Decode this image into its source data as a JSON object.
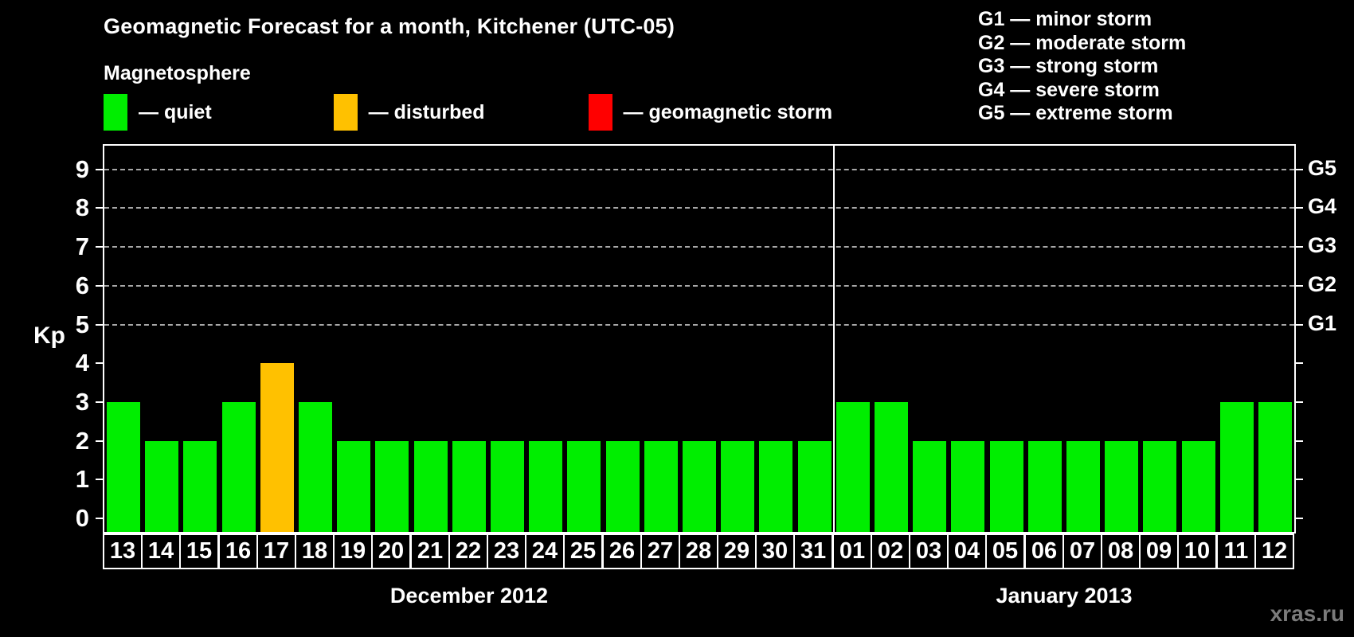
{
  "header": {
    "title": "Geomagnetic Forecast for a month, Kitchener (UTC-05)",
    "subtitle": "Magnetosphere"
  },
  "legend": {
    "items": [
      {
        "name": "quiet",
        "label": "— quiet",
        "color": "#00ee00"
      },
      {
        "name": "disturbed",
        "label": "— disturbed",
        "color": "#ffc100"
      },
      {
        "name": "storm",
        "label": "— geomagnetic storm",
        "color": "#ff0000"
      }
    ]
  },
  "g_scale_legend": {
    "items": [
      "G1 — minor storm",
      "G2 — moderate storm",
      "G3 — strong storm",
      "G4 — severe storm",
      "G5 — extreme storm"
    ]
  },
  "watermark": "xras.ru",
  "chart_data": {
    "type": "bar",
    "title": "Geomagnetic Forecast for a month, Kitchener (UTC-05)",
    "ylabel": "Kp",
    "ylim": [
      0,
      9
    ],
    "yticks": [
      0,
      1,
      2,
      3,
      4,
      5,
      6,
      7,
      8,
      9
    ],
    "gridlines_at": [
      5,
      6,
      7,
      8,
      9
    ],
    "grid": "dashed, only at storm levels 5-9",
    "right_axis_labels": [
      {
        "level": 5,
        "label": "G1"
      },
      {
        "level": 6,
        "label": "G2"
      },
      {
        "level": 7,
        "label": "G3"
      },
      {
        "level": 8,
        "label": "G4"
      },
      {
        "level": 9,
        "label": "G5"
      }
    ],
    "colors": {
      "quiet": "#00ee00",
      "disturbed": "#ffc100",
      "storm": "#ff0000"
    },
    "sections": [
      {
        "label": "December 2012",
        "days": 19
      },
      {
        "label": "January 2013",
        "days": 12
      }
    ],
    "bars": [
      {
        "day": "13",
        "kp": 3,
        "state": "quiet"
      },
      {
        "day": "14",
        "kp": 2,
        "state": "quiet"
      },
      {
        "day": "15",
        "kp": 2,
        "state": "quiet"
      },
      {
        "day": "16",
        "kp": 3,
        "state": "quiet"
      },
      {
        "day": "17",
        "kp": 4,
        "state": "disturbed"
      },
      {
        "day": "18",
        "kp": 3,
        "state": "quiet"
      },
      {
        "day": "19",
        "kp": 2,
        "state": "quiet"
      },
      {
        "day": "20",
        "kp": 2,
        "state": "quiet"
      },
      {
        "day": "21",
        "kp": 2,
        "state": "quiet"
      },
      {
        "day": "22",
        "kp": 2,
        "state": "quiet"
      },
      {
        "day": "23",
        "kp": 2,
        "state": "quiet"
      },
      {
        "day": "24",
        "kp": 2,
        "state": "quiet"
      },
      {
        "day": "25",
        "kp": 2,
        "state": "quiet"
      },
      {
        "day": "26",
        "kp": 2,
        "state": "quiet"
      },
      {
        "day": "27",
        "kp": 2,
        "state": "quiet"
      },
      {
        "day": "28",
        "kp": 2,
        "state": "quiet"
      },
      {
        "day": "29",
        "kp": 2,
        "state": "quiet"
      },
      {
        "day": "30",
        "kp": 2,
        "state": "quiet"
      },
      {
        "day": "31",
        "kp": 2,
        "state": "quiet"
      },
      {
        "day": "01",
        "kp": 3,
        "state": "quiet"
      },
      {
        "day": "02",
        "kp": 3,
        "state": "quiet"
      },
      {
        "day": "03",
        "kp": 2,
        "state": "quiet"
      },
      {
        "day": "04",
        "kp": 2,
        "state": "quiet"
      },
      {
        "day": "05",
        "kp": 2,
        "state": "quiet"
      },
      {
        "day": "06",
        "kp": 2,
        "state": "quiet"
      },
      {
        "day": "07",
        "kp": 2,
        "state": "quiet"
      },
      {
        "day": "08",
        "kp": 2,
        "state": "quiet"
      },
      {
        "day": "09",
        "kp": 2,
        "state": "quiet"
      },
      {
        "day": "10",
        "kp": 2,
        "state": "quiet"
      },
      {
        "day": "11",
        "kp": 3,
        "state": "quiet"
      },
      {
        "day": "12",
        "kp": 3,
        "state": "quiet"
      }
    ]
  }
}
